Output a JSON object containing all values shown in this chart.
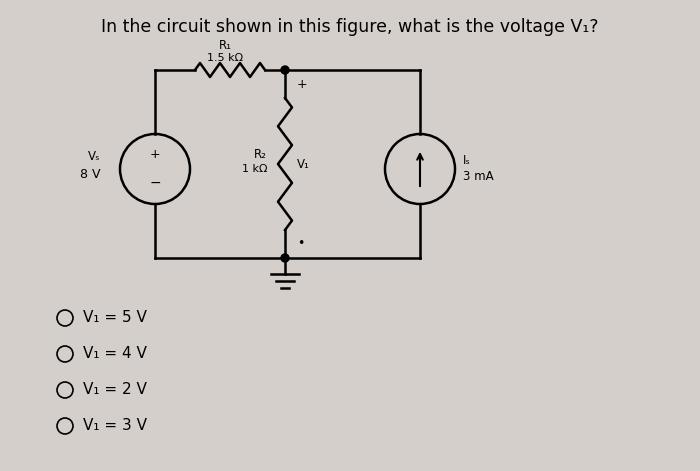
{
  "title": "In the circuit shown in this figure, what is the voltage V₁?",
  "title_fontsize": 12.5,
  "bg_color": "#d4cfca",
  "options": [
    "V₁ = 5 V",
    "V₁ = 4 V",
    "V₁ = 2 V",
    "V₁ = 3 V"
  ],
  "options_fontsize": 11,
  "R1_label": "R₁",
  "R1_value": "1.5 kΩ",
  "R2_label": "R₂",
  "R2_value": "1 kΩ",
  "Vs_label": "Vₛ",
  "Vs_value": "8 V",
  "Is_label": "Iₛ",
  "Is_value": "3 mA",
  "V1_label": "V₁"
}
